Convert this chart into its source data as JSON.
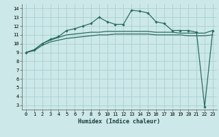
{
  "xlabel": "Humidex (Indice chaleur)",
  "xlim": [
    -0.5,
    23.5
  ],
  "ylim": [
    2.5,
    14.5
  ],
  "yticks": [
    3,
    4,
    5,
    6,
    7,
    8,
    9,
    10,
    11,
    12,
    13,
    14
  ],
  "xticks": [
    0,
    1,
    2,
    3,
    4,
    5,
    6,
    7,
    8,
    9,
    10,
    11,
    12,
    13,
    14,
    15,
    16,
    17,
    18,
    19,
    20,
    21,
    22,
    23
  ],
  "bg_color": "#cce8e8",
  "grid_color": "#aacfcf",
  "line_color": "#2a6b5e",
  "series1_x": [
    0,
    1,
    2,
    3,
    4,
    5,
    6,
    7,
    8,
    9,
    10,
    11,
    12,
    13,
    14,
    15,
    16,
    17,
    18,
    19,
    20,
    21,
    22,
    23
  ],
  "series1_y": [
    9.0,
    9.3,
    10.0,
    10.5,
    10.8,
    11.5,
    11.7,
    12.0,
    12.3,
    13.0,
    12.5,
    12.2,
    12.2,
    13.8,
    13.7,
    13.5,
    12.5,
    12.3,
    11.5,
    11.5,
    11.5,
    11.3,
    2.8,
    11.5
  ],
  "series2_x": [
    0,
    1,
    2,
    3,
    4,
    5,
    6,
    7,
    8,
    9,
    10,
    11,
    12,
    13,
    14,
    15,
    16,
    17,
    18,
    19,
    20,
    21,
    22,
    23
  ],
  "series2_y": [
    9.0,
    9.3,
    10.0,
    10.4,
    10.7,
    11.0,
    11.1,
    11.2,
    11.3,
    11.3,
    11.4,
    11.4,
    11.4,
    11.4,
    11.4,
    11.4,
    11.3,
    11.3,
    11.3,
    11.2,
    11.2,
    11.2,
    11.2,
    11.5
  ],
  "series3_x": [
    0,
    1,
    2,
    3,
    4,
    5,
    6,
    7,
    8,
    9,
    10,
    11,
    12,
    13,
    14,
    15,
    16,
    17,
    18,
    19,
    20,
    21,
    22,
    23
  ],
  "series3_y": [
    9.0,
    9.2,
    9.8,
    10.2,
    10.4,
    10.6,
    10.7,
    10.8,
    10.9,
    11.0,
    11.0,
    11.1,
    11.1,
    11.1,
    11.1,
    11.1,
    11.0,
    11.0,
    11.0,
    11.0,
    10.9,
    10.9,
    10.9,
    11.0
  ]
}
